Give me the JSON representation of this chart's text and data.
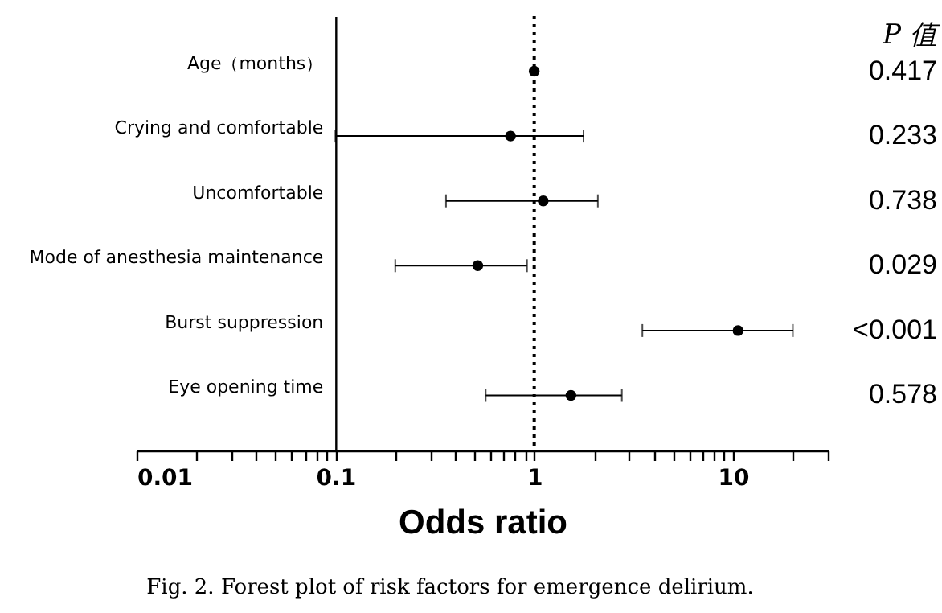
{
  "chart_data": {
    "type": "scatter",
    "orientation": "horizontal",
    "xlabel": "Odds ratio",
    "categories": [
      "Age（months）",
      "Crying and comfortable",
      "Uncomfortable",
      "Mode of anesthesia maintenance",
      "Burst suppression",
      "Eye opening time"
    ],
    "values": [
      1.0,
      0.76,
      1.11,
      0.52,
      10.6,
      1.53
    ],
    "errors": [
      null,
      [
        0.1,
        1.77
      ],
      [
        0.36,
        2.09
      ],
      [
        0.2,
        0.92
      ],
      [
        3.5,
        20
      ],
      [
        0.57,
        2.76
      ]
    ],
    "color": "#000000",
    "marker": "circle",
    "log": "x",
    "grid": false,
    "xlim": [
      0.01,
      30
    ],
    "xticks": [
      0.01,
      {
        "value": 0.02,
        "label": null
      },
      {
        "value": 0.03,
        "label": null
      },
      {
        "value": 0.04,
        "label": null
      },
      {
        "value": 0.05,
        "label": null
      },
      {
        "value": 0.06,
        "label": null
      },
      {
        "value": 0.07,
        "label": null
      },
      {
        "value": 0.08,
        "label": null
      },
      {
        "value": 0.09,
        "label": null
      },
      0.1,
      {
        "value": 0.2,
        "label": null
      },
      {
        "value": 0.3,
        "label": null
      },
      {
        "value": 0.4,
        "label": null
      },
      {
        "value": 0.5,
        "label": null
      },
      {
        "value": 0.6,
        "label": null
      },
      {
        "value": 0.7,
        "label": null
      },
      {
        "value": 0.8,
        "label": null
      },
      {
        "value": 0.9,
        "label": null
      },
      1,
      {
        "value": 2,
        "label": null
      },
      {
        "value": 3,
        "label": null
      },
      {
        "value": 4,
        "label": null
      },
      {
        "value": 5,
        "label": null
      },
      {
        "value": 6,
        "label": null
      },
      {
        "value": 7,
        "label": null
      },
      {
        "value": 8,
        "label": null
      },
      {
        "value": 9,
        "label": null
      },
      10,
      {
        "value": 20,
        "label": null
      },
      {
        "value": 30,
        "label": null
      }
    ],
    "ref_lines": [
      {
        "axis": "x",
        "value": 1,
        "line_style": "dotted",
        "color": "#000000"
      }
    ],
    "annotations": [
      "P 值",
      "0.417",
      "0.233",
      "0.738",
      "0.029",
      "<0.001",
      "0.578",
      "Fig. 2. Forest plot of risk factors for emergence delirium."
    ]
  }
}
